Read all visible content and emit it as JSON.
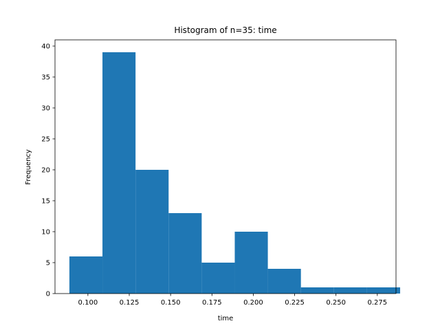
{
  "chart_data": {
    "type": "bar",
    "title": "Histogram of n=35: time",
    "xlabel": "time",
    "ylabel": "Frequency",
    "bin_edges": [
      0.0888,
      0.1088,
      0.1288,
      0.1488,
      0.1688,
      0.1888,
      0.2088,
      0.2288,
      0.2488,
      0.2688,
      0.2888
    ],
    "values": [
      6,
      39,
      20,
      13,
      5,
      10,
      4,
      1,
      1,
      1
    ],
    "xlim": [
      0.0801,
      0.2863
    ],
    "ylim": [
      0,
      41
    ],
    "xticks": [
      0.1,
      0.125,
      0.15,
      0.175,
      0.2,
      0.225,
      0.25,
      0.275
    ],
    "xtick_labels": [
      "0.100",
      "0.125",
      "0.150",
      "0.175",
      "0.200",
      "0.225",
      "0.250",
      "0.275"
    ],
    "yticks": [
      0,
      5,
      10,
      15,
      20,
      25,
      30,
      35,
      40
    ],
    "ytick_labels": [
      "0",
      "5",
      "10",
      "15",
      "20",
      "25",
      "30",
      "35",
      "40"
    ],
    "grid": false,
    "bar_color": "#1f77b4"
  }
}
